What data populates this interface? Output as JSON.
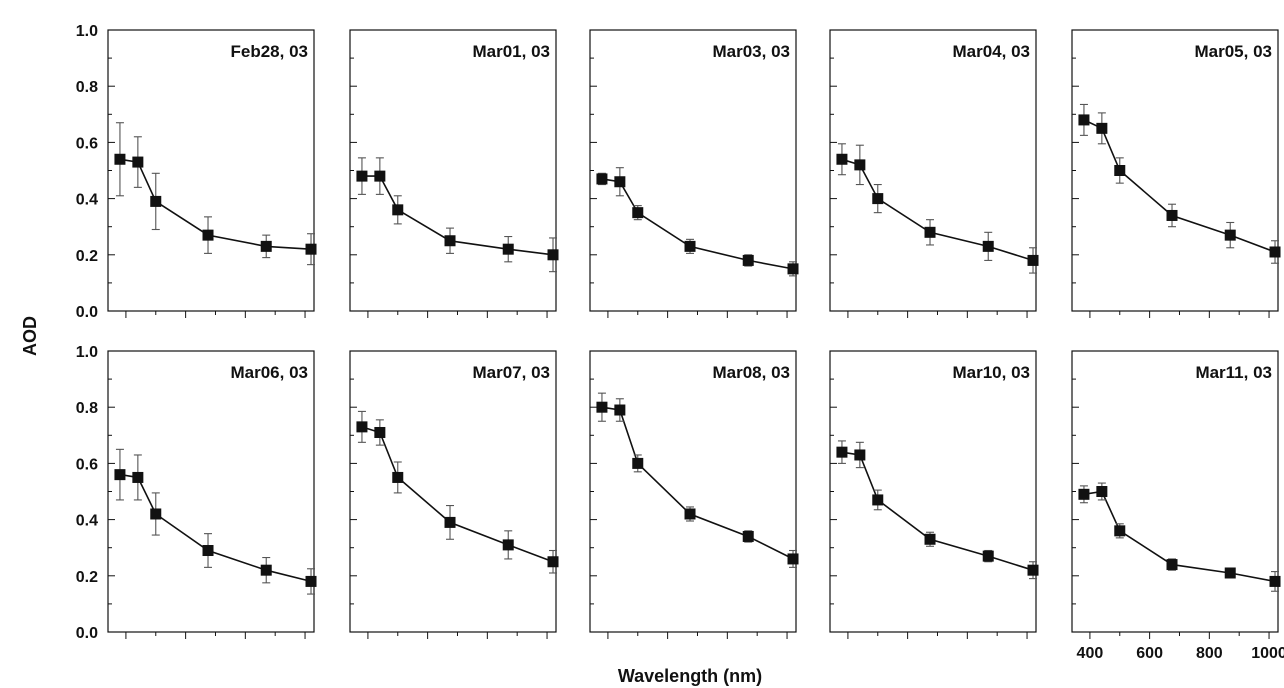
{
  "chart_data": {
    "type": "scatter",
    "xlabel": "Wavelength (nm)",
    "ylabel": "AOD",
    "xlim": [
      340,
      1030
    ],
    "ylim": [
      0,
      1.0
    ],
    "x": [
      380,
      440,
      500,
      675,
      870,
      1020
    ],
    "x_ticks": [
      400,
      600,
      800,
      1000
    ],
    "y_ticks": [
      "0.0",
      "0.2",
      "0.4",
      "0.6",
      "0.8",
      "1.0"
    ],
    "colors": {
      "marker": "#111111",
      "line": "#111111",
      "error": "#555555"
    },
    "panels": [
      {
        "label": "Feb28, 03",
        "values": [
          0.54,
          0.53,
          0.39,
          0.27,
          0.23,
          0.22
        ],
        "errors": [
          0.13,
          0.09,
          0.1,
          0.065,
          0.04,
          0.055
        ]
      },
      {
        "label": "Mar01, 03",
        "values": [
          0.48,
          0.48,
          0.36,
          0.25,
          0.22,
          0.2
        ],
        "errors": [
          0.065,
          0.065,
          0.05,
          0.045,
          0.045,
          0.06
        ]
      },
      {
        "label": "Mar03, 03",
        "values": [
          0.47,
          0.46,
          0.35,
          0.23,
          0.18,
          0.15
        ],
        "errors": [
          0.02,
          0.05,
          0.025,
          0.025,
          0.02,
          0.025
        ]
      },
      {
        "label": "Mar04, 03",
        "values": [
          0.54,
          0.52,
          0.4,
          0.28,
          0.23,
          0.18
        ],
        "errors": [
          0.055,
          0.07,
          0.05,
          0.045,
          0.05,
          0.045
        ]
      },
      {
        "label": "Mar05, 03",
        "values": [
          0.68,
          0.65,
          0.5,
          0.34,
          0.27,
          0.21
        ],
        "errors": [
          0.055,
          0.055,
          0.045,
          0.04,
          0.045,
          0.04
        ]
      },
      {
        "label": "Mar06, 03",
        "values": [
          0.56,
          0.55,
          0.42,
          0.29,
          0.22,
          0.18
        ],
        "errors": [
          0.09,
          0.08,
          0.075,
          0.06,
          0.045,
          0.045
        ]
      },
      {
        "label": "Mar07, 03",
        "values": [
          0.73,
          0.71,
          0.55,
          0.39,
          0.31,
          0.25
        ],
        "errors": [
          0.055,
          0.045,
          0.055,
          0.06,
          0.05,
          0.04
        ]
      },
      {
        "label": "Mar08, 03",
        "values": [
          0.8,
          0.79,
          0.6,
          0.42,
          0.34,
          0.26
        ],
        "errors": [
          0.05,
          0.04,
          0.03,
          0.025,
          0.02,
          0.03
        ]
      },
      {
        "label": "Mar10, 03",
        "values": [
          0.64,
          0.63,
          0.47,
          0.33,
          0.27,
          0.22
        ],
        "errors": [
          0.04,
          0.045,
          0.035,
          0.025,
          0.02,
          0.03
        ]
      },
      {
        "label": "Mar11, 03",
        "values": [
          0.49,
          0.5,
          0.36,
          0.24,
          0.21,
          0.18
        ],
        "errors": [
          0.03,
          0.03,
          0.025,
          0.02,
          0.015,
          0.035
        ]
      }
    ]
  }
}
